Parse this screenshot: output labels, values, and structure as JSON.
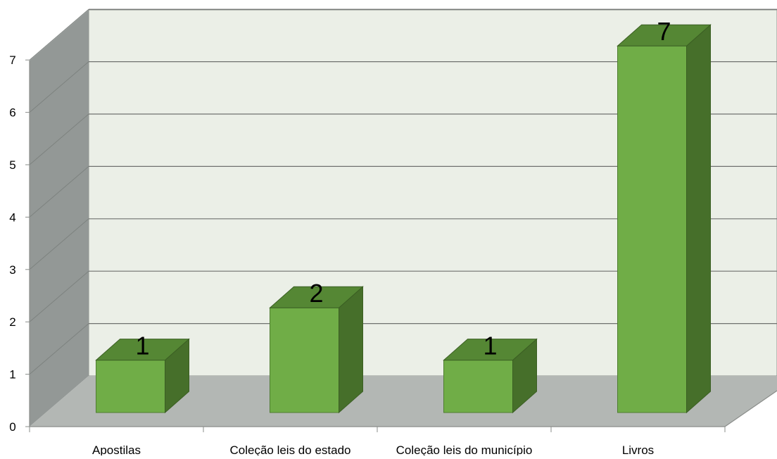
{
  "chart_data": {
    "type": "bar",
    "categories": [
      "Apostilas",
      "Coleção leis do estado",
      "Coleção leis do município",
      "Livros"
    ],
    "values": [
      1,
      2,
      1,
      7
    ],
    "data_labels": [
      "1",
      "2",
      "1",
      "7"
    ],
    "y_ticks": [
      "0",
      "1",
      "2",
      "3",
      "4",
      "5",
      "6",
      "7"
    ],
    "ylim": [
      0,
      7
    ],
    "grid": true,
    "style": "3d-column",
    "colors": {
      "bar_front": "#70ad47",
      "bar_top": "#558734",
      "bar_side": "#466f2a",
      "back_wall": "#ebefe7",
      "side_wall": "#939896",
      "floor": "#b3b7b4",
      "gridline": "#6f716f",
      "text": "#000000"
    }
  }
}
